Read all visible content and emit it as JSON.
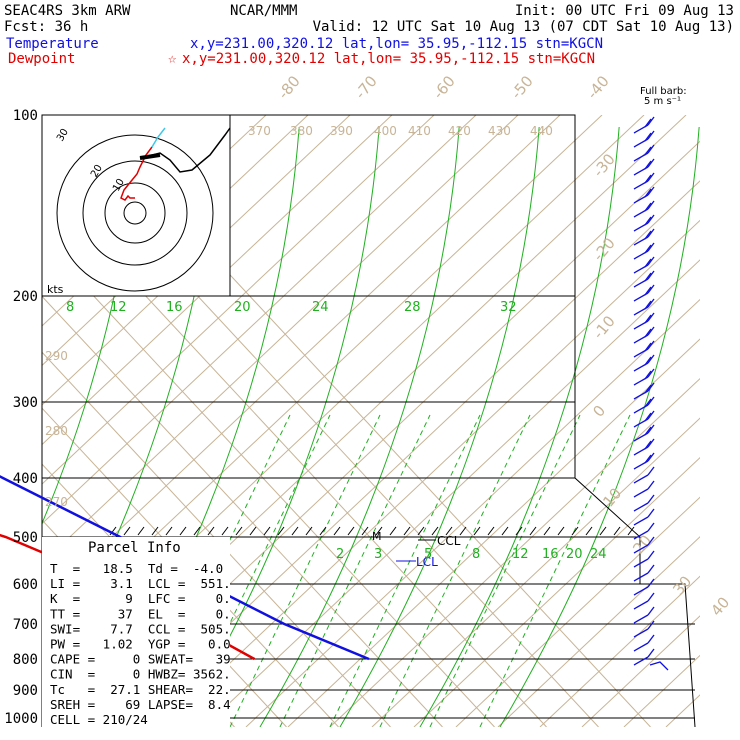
{
  "header": {
    "left_line1": "SEAC4RS  3km ARW",
    "left_line2": "Fcst:   36 h",
    "center": "NCAR/MMM",
    "init": "Init: 00 UTC Fri 09 Aug 13",
    "valid": "Valid: 12 UTC Sat 10 Aug 13 (07 CDT Sat 10 Aug 13)",
    "temp_label": "Temperature",
    "temp_loc": "x,y=231.00,320.12   lat,lon= 35.95,-112.15  stn=KGCN",
    "dew_label": "Dewpoint",
    "dew_marker": "☆",
    "dew_loc": "x,y=231.00,320.12   lat,lon= 35.95,-112.15  stn=KGCN"
  },
  "barb_legend": {
    "line1": "Full barb:",
    "line2": "5 m s⁻¹"
  },
  "hodograph": {
    "unit": "kts",
    "rings": [
      "10",
      "20",
      "30"
    ]
  },
  "parcel": {
    "title": "Parcel Info",
    "rows": [
      "T  =   18.5  Td =  -4.0",
      "LI =    3.1  LCL =  551.",
      "K  =      9  LFC =    0.",
      "TT =     37  EL  =    0.",
      "SWI=    7.7  CCL =  505.",
      "PW =   1.02  YGP =   0.0",
      "CAPE =     0 SWEAT=   39",
      "CIN  =     0 HWBZ= 3562.",
      "Tc   =  27.1 SHEAR=  22.",
      "SREH =    69 LAPSE=  8.4",
      "CELL = 210/24"
    ]
  },
  "markers": {
    "ccl": "CCL",
    "lcl": "LCL",
    "mean": "M"
  },
  "colors": {
    "temp": "#1010e0",
    "dew": "#e00000",
    "isotherm": "#c8b496",
    "mixing": "#20b020",
    "adiabat": "#c8b496"
  },
  "chart_data": {
    "type": "line",
    "title": "",
    "xlabel": "",
    "ylabel": "",
    "y_scale": "log pressure",
    "pressure_levels": [
      "100",
      "200",
      "300",
      "400",
      "500",
      "600",
      "700",
      "800",
      "900",
      "1000"
    ],
    "isotherm_labels": [
      "-80",
      "-70",
      "-60",
      "-50",
      "-40",
      "-30",
      "-20",
      "-10",
      "0",
      "10",
      "20",
      "30",
      "40"
    ],
    "theta_labels": [
      "370",
      "380",
      "390",
      "400",
      "410",
      "420",
      "430",
      "440",
      "290",
      "280",
      "270"
    ],
    "mixing_ratio_labels_upper": [
      "8",
      "12",
      "16",
      "20",
      "24",
      "28",
      "32"
    ],
    "mixing_ratio_labels_lower": [
      "2",
      "3",
      "5",
      "8",
      "12",
      "16",
      "20",
      "24"
    ],
    "series": [
      {
        "name": "Temperature",
        "points": [
          [
            100,
            -56
          ],
          [
            150,
            -57
          ],
          [
            200,
            -54
          ],
          [
            250,
            -43
          ],
          [
            300,
            -35
          ],
          [
            400,
            -20
          ],
          [
            500,
            -8
          ],
          [
            600,
            0
          ],
          [
            700,
            8
          ],
          [
            800,
            18
          ]
        ]
      },
      {
        "name": "Dewpoint",
        "points": [
          [
            100,
            -92
          ],
          [
            150,
            -90
          ],
          [
            200,
            -85
          ],
          [
            250,
            -82
          ],
          [
            300,
            -74
          ],
          [
            350,
            -80
          ],
          [
            400,
            -62
          ],
          [
            450,
            -42
          ],
          [
            500,
            -30
          ],
          [
            600,
            -17
          ],
          [
            650,
            -12
          ],
          [
            700,
            -10
          ],
          [
            800,
            -4
          ]
        ]
      }
    ]
  }
}
